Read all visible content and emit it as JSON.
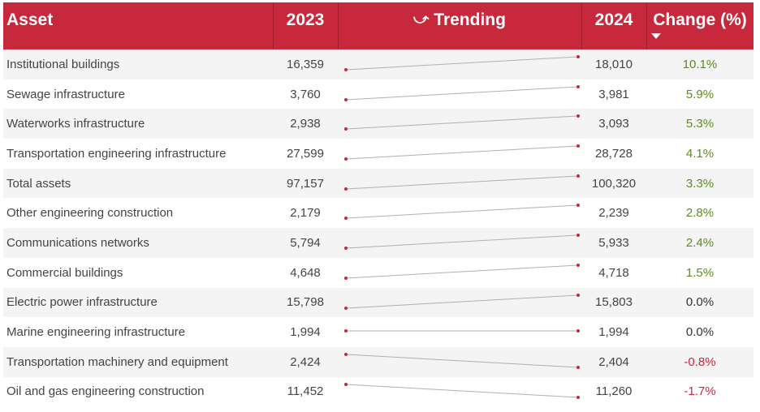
{
  "chart_data": {
    "type": "table",
    "columns": {
      "asset": "Asset",
      "y2023": "2023",
      "trend": "Trending",
      "y2024": "2024",
      "change": "Change (%)"
    },
    "sort": "Change (%) descending",
    "rows": [
      {
        "asset": "Institutional buildings",
        "v2023": 16359,
        "v2023_label": "16,359",
        "v2024": 18010,
        "v2024_label": "18,010",
        "change": 10.1,
        "change_label": "10.1%"
      },
      {
        "asset": "Sewage infrastructure",
        "v2023": 3760,
        "v2023_label": "3,760",
        "v2024": 3981,
        "v2024_label": "3,981",
        "change": 5.9,
        "change_label": "5.9%"
      },
      {
        "asset": "Waterworks infrastructure",
        "v2023": 2938,
        "v2023_label": "2,938",
        "v2024": 3093,
        "v2024_label": "3,093",
        "change": 5.3,
        "change_label": "5.3%"
      },
      {
        "asset": "Transportation engineering infrastructure",
        "v2023": 27599,
        "v2023_label": "27,599",
        "v2024": 28728,
        "v2024_label": "28,728",
        "change": 4.1,
        "change_label": "4.1%"
      },
      {
        "asset": "Total assets",
        "v2023": 97157,
        "v2023_label": "97,157",
        "v2024": 100320,
        "v2024_label": "100,320",
        "change": 3.3,
        "change_label": "3.3%"
      },
      {
        "asset": "Other engineering construction",
        "v2023": 2179,
        "v2023_label": "2,179",
        "v2024": 2239,
        "v2024_label": "2,239",
        "change": 2.8,
        "change_label": "2.8%"
      },
      {
        "asset": "Communications networks",
        "v2023": 5794,
        "v2023_label": "5,794",
        "v2024": 5933,
        "v2024_label": "5,933",
        "change": 2.4,
        "change_label": "2.4%"
      },
      {
        "asset": "Commercial buildings",
        "v2023": 4648,
        "v2023_label": "4,648",
        "v2024": 4718,
        "v2024_label": "4,718",
        "change": 1.5,
        "change_label": "1.5%"
      },
      {
        "asset": "Electric power infrastructure",
        "v2023": 15798,
        "v2023_label": "15,798",
        "v2024": 15803,
        "v2024_label": "15,803",
        "change": 0.0,
        "change_label": "0.0%"
      },
      {
        "asset": "Marine engineering infrastructure",
        "v2023": 1994,
        "v2023_label": "1,994",
        "v2024": 1994,
        "v2024_label": "1,994",
        "change": 0.0,
        "change_label": "0.0%"
      },
      {
        "asset": "Transportation machinery and equipment",
        "v2023": 2424,
        "v2023_label": "2,424",
        "v2024": 2404,
        "v2024_label": "2,404",
        "change": -0.8,
        "change_label": "-0.8%"
      },
      {
        "asset": "Oil and gas engineering construction",
        "v2023": 11452,
        "v2023_label": "11,452",
        "v2024": 11260,
        "v2024_label": "11,260",
        "change": -1.7,
        "change_label": "-1.7%"
      }
    ]
  },
  "colors": {
    "header_bg": "#c8283b",
    "positive": "#5b8c1e",
    "negative": "#c8283b",
    "neutral": "#333333",
    "spark_line": "#b0b0b0",
    "spark_dot": "#c8283b"
  },
  "icons": {
    "trend_icon": "trend-arrow-icon",
    "sort_icon": "sort-descending-icon"
  }
}
